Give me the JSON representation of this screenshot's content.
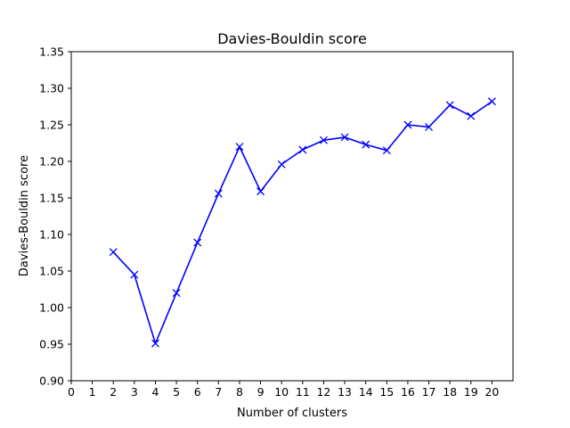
{
  "chart_data": {
    "type": "line",
    "title": "Davies-Bouldin score",
    "xlabel": "Number of clusters",
    "ylabel": "Davies-Bouldin score",
    "xlim": [
      0,
      21
    ],
    "ylim": [
      0.9,
      1.35
    ],
    "xticks": [
      0,
      1,
      2,
      3,
      4,
      5,
      6,
      7,
      8,
      9,
      10,
      11,
      12,
      13,
      14,
      15,
      16,
      17,
      18,
      19,
      20
    ],
    "yticks": [
      "0.90",
      "0.95",
      "1.00",
      "1.05",
      "1.10",
      "1.15",
      "1.20",
      "1.25",
      "1.30",
      "1.35"
    ],
    "grid": false,
    "series": [
      {
        "color": "#0000ff",
        "marker": "x",
        "x": [
          2,
          3,
          4,
          5,
          6,
          7,
          8,
          9,
          10,
          11,
          12,
          13,
          14,
          15,
          16,
          17,
          18,
          19,
          20
        ],
        "y": [
          1.076,
          1.045,
          0.951,
          1.02,
          1.089,
          1.156,
          1.22,
          1.159,
          1.196,
          1.216,
          1.229,
          1.233,
          1.223,
          1.215,
          1.25,
          1.247,
          1.277,
          1.262,
          1.282
        ]
      }
    ]
  }
}
